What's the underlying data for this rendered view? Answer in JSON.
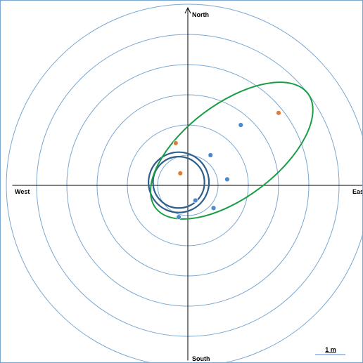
{
  "chart_data": {
    "type": "scatter",
    "title": "",
    "axis_range_m": [
      -5.8,
      5.8
    ],
    "ring_radii_m": [
      1,
      2,
      3,
      4,
      5
    ],
    "direction_labels": {
      "north": "North",
      "south": "South",
      "west": "West",
      "east": "East"
    },
    "scale_bar": {
      "label": "1 m",
      "length_m": 1
    },
    "series": [
      {
        "color": "#4a8ad0",
        "points": [
          {
            "x": 1.75,
            "y": 2.0
          },
          {
            "x": 0.75,
            "y": 1.0
          },
          {
            "x": 1.3,
            "y": 0.2
          },
          {
            "x": 0.25,
            "y": -0.5
          },
          {
            "x": 0.85,
            "y": -0.75
          },
          {
            "x": -0.3,
            "y": -1.05
          }
        ]
      },
      {
        "color": "#e07b39",
        "points": [
          {
            "x": 3.0,
            "y": 2.4
          },
          {
            "x": -0.4,
            "y": 1.4
          },
          {
            "x": -0.25,
            "y": 0.4
          }
        ]
      }
    ],
    "circles": [
      {
        "color": "#2e5f8a",
        "cx": -0.3,
        "cy": 0.1,
        "r": 1.0
      },
      {
        "color": "#2e5f8a",
        "cx": -0.3,
        "cy": 0.1,
        "r": 0.85
      }
    ],
    "ellipse": {
      "color": "#1a9e45",
      "cx": 1.45,
      "cy": 1.15,
      "rx": 3.15,
      "ry": 1.55,
      "rotation_deg": 37
    },
    "grid_color": "#7aa7d1"
  }
}
